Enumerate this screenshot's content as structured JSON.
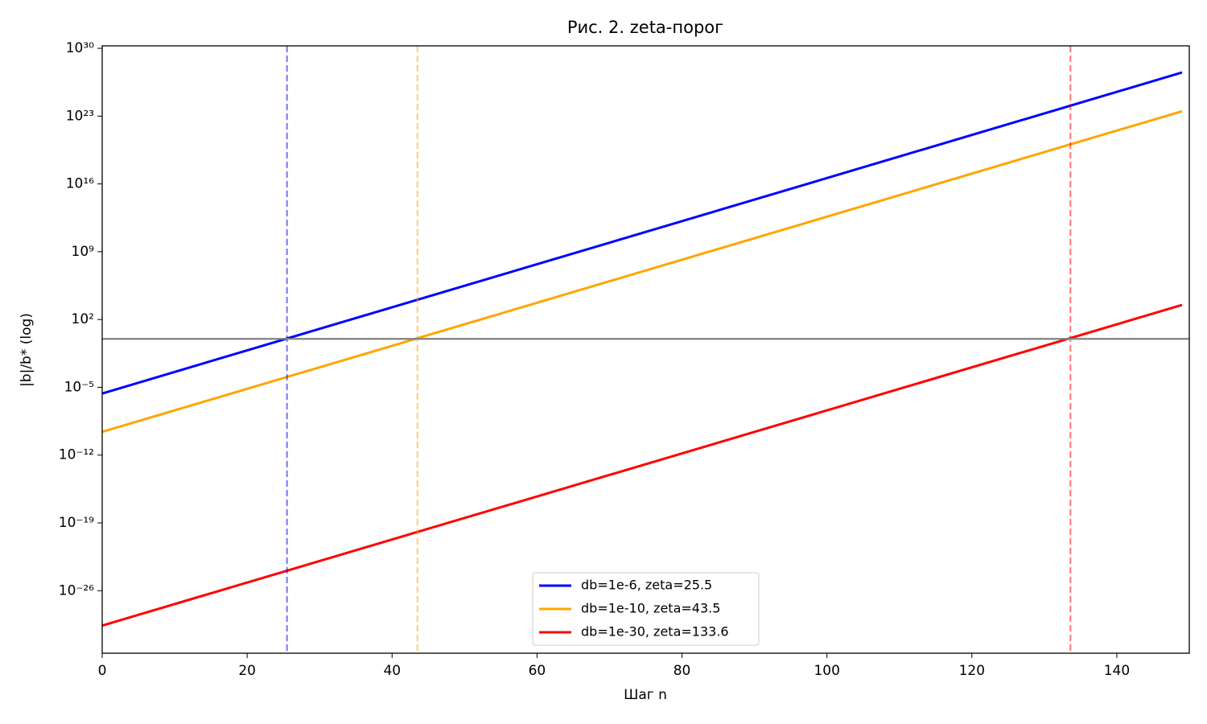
{
  "chart_data": {
    "type": "line",
    "title": "Рис. 2. zeta-порог",
    "x_label": "Шаг n",
    "y_label": "|b|/b* (log)",
    "x": [
      0,
      149
    ],
    "series": [
      {
        "name": "db=1e-6, zeta=25.5",
        "color": "blue",
        "values": [
          2.3e-06,
          3.2e+27
        ]
      },
      {
        "name": "db=1e-10, zeta=43.5",
        "color": "orange",
        "values": [
          2.5e-10,
          3.2e+23
        ]
      },
      {
        "name": "db=1e-30, zeta=133.6",
        "color": "red",
        "values": [
          2.5e-30,
          3200
        ]
      }
    ],
    "vlines": [
      {
        "x": 25.5,
        "color": "blue"
      },
      {
        "x": 43.5,
        "color": "orange"
      },
      {
        "x": 133.6,
        "color": "red"
      }
    ],
    "hlines": [
      {
        "y": 1,
        "color": "gray"
      }
    ],
    "xlim": [
      0,
      150
    ],
    "ylim": [
      3.5e-33,
      1.8e+30
    ],
    "log_y": true,
    "xticks": [
      0,
      20,
      40,
      60,
      80,
      100,
      120,
      140
    ],
    "yticks": [
      {
        "value": 1e+30,
        "label": "10³⁰"
      },
      {
        "value": 1e+23,
        "label": "10²³"
      },
      {
        "value": 1e+16,
        "label": "10¹⁶"
      },
      {
        "value": 1000000000.0,
        "label": "10⁹"
      },
      {
        "value": 100,
        "label": "10²"
      },
      {
        "value": 1e-05,
        "label": "10⁻⁵"
      },
      {
        "value": 1e-12,
        "label": "10⁻¹²"
      },
      {
        "value": 1e-19,
        "label": "10⁻¹⁹"
      },
      {
        "value": 1e-26,
        "label": "10⁻²⁶"
      }
    ],
    "legend": "lower center"
  }
}
